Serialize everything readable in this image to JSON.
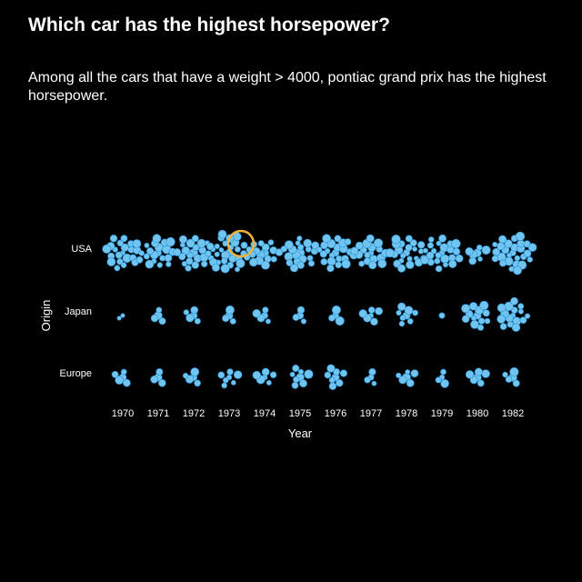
{
  "header": {
    "title": "Which car has the highest horsepower?",
    "subtitle": "Among all the cars that have a weight > 4000, pontiac grand prix has the highest horsepower."
  },
  "colors": {
    "background": "#000000",
    "dot_fill": "#72c4f0",
    "dot_stroke": "#1f8fd0",
    "highlight": "#f0b43c",
    "text": "#ffffff"
  },
  "chart_data": {
    "type": "scatter",
    "subtype": "packed-bubble grid",
    "xlabel": "Year",
    "ylabel": "Origin",
    "x_categories": [
      "1970",
      "1971",
      "1972",
      "1973",
      "1974",
      "1975",
      "1976",
      "1977",
      "1978",
      "1979",
      "1980",
      "1982"
    ],
    "y_categories": [
      "USA",
      "Japan",
      "Europe"
    ],
    "counts": {
      "USA": [
        22,
        19,
        22,
        29,
        15,
        20,
        22,
        18,
        22,
        23,
        7,
        27
      ],
      "Japan": [
        2,
        4,
        5,
        4,
        5,
        4,
        4,
        6,
        8,
        1,
        13,
        16
      ],
      "Europe": [
        5,
        4,
        5,
        7,
        6,
        8,
        8,
        4,
        6,
        4,
        6,
        5
      ]
    },
    "highlight": {
      "origin": "USA",
      "year": "1973",
      "label": "pontiac grand prix"
    },
    "grid": false,
    "legend": "none"
  }
}
